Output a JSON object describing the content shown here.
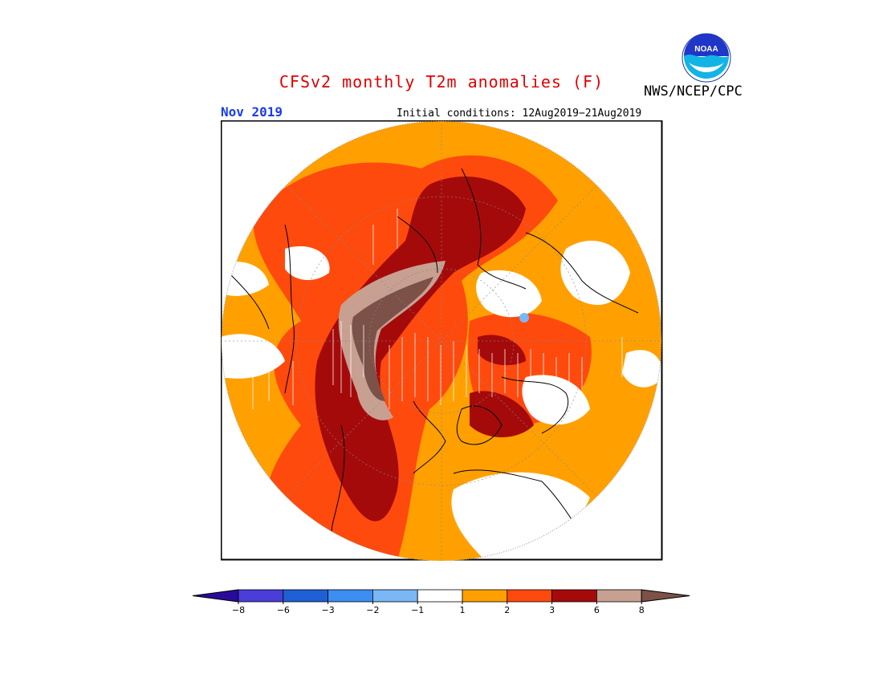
{
  "title": "CFSv2 monthly T2m anomalies (F)",
  "period": "Nov 2019",
  "initial_conditions": "Initial conditions: 12Aug2019−21Aug2019",
  "agency": "NWS/NCEP/CPC",
  "logo_text": "NOAA",
  "projection": "north-polar-stereographic",
  "colorbar": {
    "ticks": [
      "−8",
      "−6",
      "−3",
      "−2",
      "−1",
      "1",
      "2",
      "3",
      "6",
      "8"
    ],
    "colors": [
      "#2a0a9a",
      "#4a3dd8",
      "#1f5fd6",
      "#3c8ef0",
      "#79b8f4",
      "#ffffff",
      "#ffa000",
      "#ff4a0e",
      "#a50a0a",
      "#c7a092",
      "#7b5148"
    ]
  },
  "colors": {
    "title": "#e00000",
    "period": "#1a3cf0",
    "land_outline": "#000000"
  }
}
